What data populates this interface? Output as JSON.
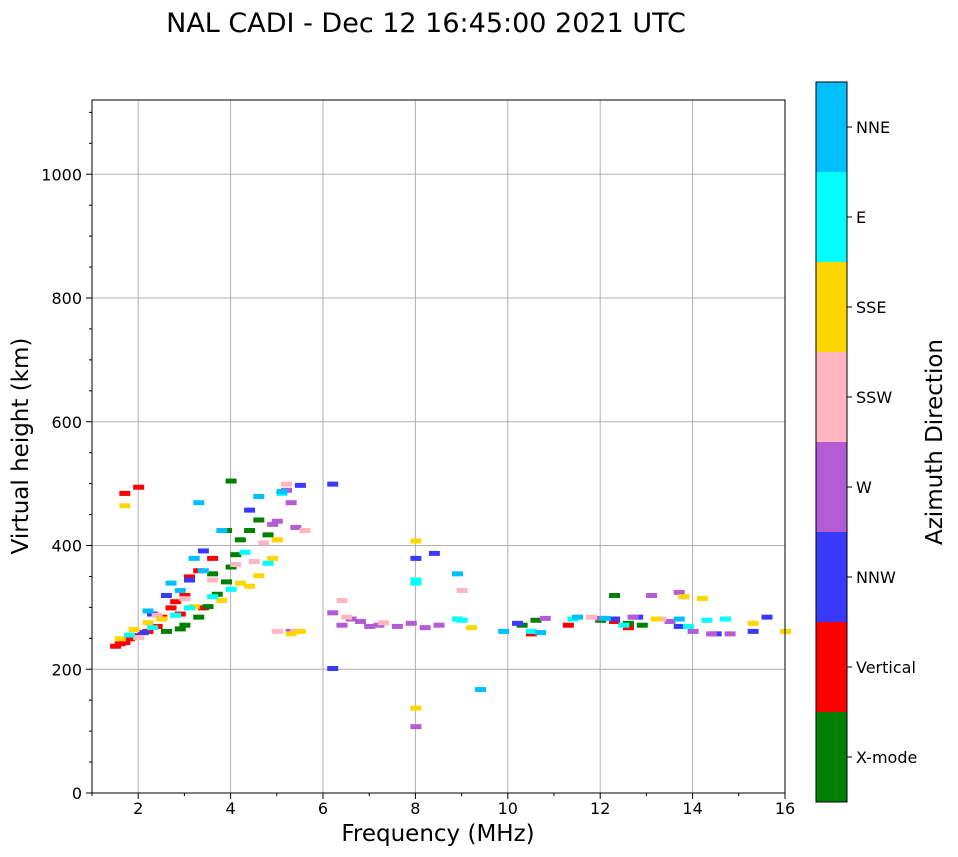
{
  "chart_data": {
    "type": "scatter",
    "title": "NAL CADI - Dec 12 16:45:00 2021 UTC",
    "xlabel": "Frequency (MHz)",
    "ylabel": "Virtual height (km)",
    "xlim": [
      1,
      16
    ],
    "ylim": [
      0,
      1120
    ],
    "x_ticks": [
      2,
      4,
      6,
      8,
      10,
      12,
      14,
      16
    ],
    "y_ticks": [
      0,
      200,
      400,
      600,
      800,
      1000
    ],
    "grid": true,
    "colorbar": {
      "label": "Azimuth Direction",
      "categories": [
        {
          "name": "X-mode",
          "color": "#008000"
        },
        {
          "name": "Vertical",
          "color": "#ff0000"
        },
        {
          "name": "NNW",
          "color": "#3a3aff"
        },
        {
          "name": "W",
          "color": "#b45cd6"
        },
        {
          "name": "SSW",
          "color": "#ffb6c1"
        },
        {
          "name": "SSE",
          "color": "#ffd700"
        },
        {
          "name": "E",
          "color": "#00ffff"
        },
        {
          "name": "NNE",
          "color": "#00bfff"
        }
      ]
    },
    "series": [
      {
        "name": "Vertical",
        "points": [
          [
            1.5,
            238
          ],
          [
            1.6,
            242
          ],
          [
            1.7,
            244
          ],
          [
            1.8,
            250
          ],
          [
            1.9,
            255
          ],
          [
            2.2,
            262
          ],
          [
            2.4,
            270
          ],
          [
            2.5,
            285
          ],
          [
            2.7,
            300
          ],
          [
            2.8,
            310
          ],
          [
            3.0,
            320
          ],
          [
            3.1,
            350
          ],
          [
            3.3,
            360
          ],
          [
            3.6,
            380
          ],
          [
            1.7,
            485
          ],
          [
            2.0,
            495
          ],
          [
            10.5,
            258
          ],
          [
            11.3,
            272
          ],
          [
            12.3,
            278
          ],
          [
            12.6,
            268
          ],
          [
            3.4,
            300
          ],
          [
            2.9,
            290
          ]
        ]
      },
      {
        "name": "X-mode",
        "points": [
          [
            2.6,
            262
          ],
          [
            2.9,
            266
          ],
          [
            3.0,
            272
          ],
          [
            3.3,
            285
          ],
          [
            3.5,
            302
          ],
          [
            3.7,
            322
          ],
          [
            3.9,
            342
          ],
          [
            4.0,
            366
          ],
          [
            4.1,
            386
          ],
          [
            4.2,
            410
          ],
          [
            4.4,
            425
          ],
          [
            4.6,
            442
          ],
          [
            4.8,
            418
          ],
          [
            4.0,
            505
          ],
          [
            3.9,
            425
          ],
          [
            3.6,
            355
          ],
          [
            12.0,
            280
          ],
          [
            12.6,
            275
          ],
          [
            12.9,
            272
          ],
          [
            10.3,
            272
          ],
          [
            10.6,
            280
          ],
          [
            12.3,
            320
          ]
        ]
      },
      {
        "name": "NNW",
        "points": [
          [
            2.1,
            260
          ],
          [
            2.3,
            290
          ],
          [
            2.6,
            320
          ],
          [
            3.1,
            345
          ],
          [
            3.4,
            392
          ],
          [
            4.4,
            458
          ],
          [
            5.5,
            498
          ],
          [
            6.2,
            500
          ],
          [
            8.0,
            380
          ],
          [
            8.4,
            388
          ],
          [
            6.2,
            202
          ],
          [
            10.2,
            275
          ],
          [
            12.8,
            285
          ],
          [
            13.7,
            270
          ],
          [
            15.6,
            285
          ],
          [
            15.3,
            262
          ],
          [
            14.5,
            258
          ],
          [
            12.3,
            282
          ]
        ]
      },
      {
        "name": "W",
        "points": [
          [
            5.0,
            440
          ],
          [
            5.2,
            490
          ],
          [
            5.3,
            470
          ],
          [
            6.2,
            292
          ],
          [
            6.4,
            272
          ],
          [
            6.6,
            282
          ],
          [
            6.8,
            278
          ],
          [
            7.0,
            270
          ],
          [
            7.2,
            272
          ],
          [
            7.6,
            270
          ],
          [
            7.9,
            275
          ],
          [
            8.2,
            268
          ],
          [
            8.5,
            272
          ],
          [
            10.8,
            283
          ],
          [
            12.0,
            283
          ],
          [
            12.7,
            285
          ],
          [
            13.1,
            320
          ],
          [
            13.5,
            278
          ],
          [
            13.7,
            325
          ],
          [
            14.0,
            262
          ],
          [
            14.4,
            258
          ],
          [
            14.8,
            258
          ],
          [
            8.0,
            108
          ],
          [
            5.4,
            430
          ],
          [
            4.9,
            435
          ],
          [
            5.3,
            262
          ]
        ]
      },
      {
        "name": "SSW",
        "points": [
          [
            2.0,
            252
          ],
          [
            2.4,
            288
          ],
          [
            3.0,
            315
          ],
          [
            3.6,
            345
          ],
          [
            4.1,
            370
          ],
          [
            4.5,
            375
          ],
          [
            4.7,
            405
          ],
          [
            5.0,
            410
          ],
          [
            5.2,
            500
          ],
          [
            5.6,
            425
          ],
          [
            6.4,
            312
          ],
          [
            6.5,
            285
          ],
          [
            7.3,
            276
          ],
          [
            9.0,
            328
          ],
          [
            11.8,
            285
          ],
          [
            13.3,
            282
          ],
          [
            5.0,
            262
          ],
          [
            5.4,
            262
          ]
        ]
      },
      {
        "name": "SSE",
        "points": [
          [
            1.6,
            250
          ],
          [
            1.9,
            265
          ],
          [
            2.2,
            276
          ],
          [
            2.5,
            282
          ],
          [
            3.2,
            302
          ],
          [
            3.8,
            312
          ],
          [
            4.2,
            340
          ],
          [
            4.6,
            352
          ],
          [
            4.9,
            380
          ],
          [
            5.0,
            410
          ],
          [
            5.5,
            262
          ],
          [
            5.3,
            258
          ],
          [
            8.0,
            408
          ],
          [
            8.0,
            138
          ],
          [
            9.2,
            268
          ],
          [
            13.2,
            282
          ],
          [
            13.8,
            318
          ],
          [
            14.2,
            315
          ],
          [
            15.3,
            275
          ],
          [
            16.0,
            262
          ],
          [
            1.7,
            465
          ],
          [
            4.4,
            335
          ]
        ]
      },
      {
        "name": "E",
        "points": [
          [
            1.8,
            256
          ],
          [
            2.3,
            268
          ],
          [
            2.8,
            288
          ],
          [
            3.1,
            300
          ],
          [
            3.6,
            318
          ],
          [
            4.0,
            330
          ],
          [
            4.3,
            390
          ],
          [
            4.8,
            372
          ],
          [
            5.1,
            485
          ],
          [
            8.0,
            345
          ],
          [
            8.0,
            340
          ],
          [
            8.9,
            282
          ],
          [
            9.0,
            280
          ],
          [
            10.5,
            262
          ],
          [
            11.4,
            282
          ],
          [
            12.5,
            272
          ],
          [
            13.9,
            270
          ],
          [
            14.3,
            280
          ],
          [
            14.7,
            282
          ]
        ]
      },
      {
        "name": "NNE",
        "points": [
          [
            2.2,
            295
          ],
          [
            2.7,
            340
          ],
          [
            3.2,
            380
          ],
          [
            3.3,
            470
          ],
          [
            3.8,
            425
          ],
          [
            4.6,
            480
          ],
          [
            5.1,
            488
          ],
          [
            8.9,
            355
          ],
          [
            9.4,
            168
          ],
          [
            9.9,
            262
          ],
          [
            10.7,
            260
          ],
          [
            11.5,
            285
          ],
          [
            12.1,
            283
          ],
          [
            13.7,
            282
          ],
          [
            2.9,
            328
          ],
          [
            3.4,
            360
          ]
        ]
      }
    ]
  }
}
